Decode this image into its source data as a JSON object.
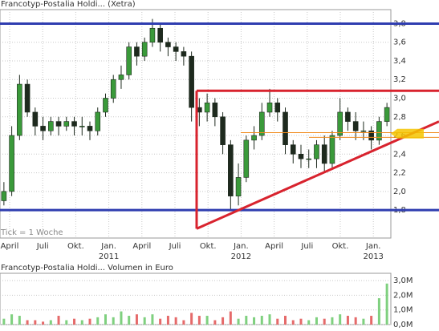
{
  "chart_data": [
    {
      "type": "candlestick",
      "title": "Francotyp-Postalia Holdi... (Xetra)",
      "note": "Tick = 1 Woche",
      "x_labels": [
        "April",
        "Juli",
        "Okt.",
        "Jan.",
        "April",
        "Juli",
        "Okt.",
        "Jan.",
        "April",
        "Juli",
        "Okt.",
        "Jan."
      ],
      "year_labels": [
        "2011",
        "2012",
        "2013"
      ],
      "open": [
        1.9,
        2.0,
        2.6,
        3.15,
        2.85,
        2.7,
        2.65,
        2.75,
        2.7,
        2.75,
        2.7,
        2.7,
        2.65,
        2.85,
        3.0,
        3.2,
        3.25,
        3.55,
        3.45,
        3.6,
        3.75,
        3.6,
        3.55,
        3.5,
        3.45,
        2.9,
        2.85,
        2.95,
        2.8,
        2.5,
        1.95,
        2.15,
        2.55,
        2.6,
        2.85,
        2.95,
        2.85,
        2.5,
        2.4,
        2.35,
        2.35,
        2.5,
        2.3,
        2.6,
        2.85,
        2.75,
        2.65,
        2.65,
        2.55,
        2.75
      ],
      "high": [
        2.1,
        2.7,
        3.25,
        3.2,
        2.9,
        2.8,
        2.8,
        2.8,
        2.8,
        2.8,
        2.8,
        2.75,
        2.9,
        3.05,
        3.25,
        3.35,
        3.6,
        3.6,
        3.65,
        3.85,
        3.8,
        3.65,
        3.6,
        3.55,
        3.5,
        3.0,
        3.05,
        3.0,
        2.85,
        2.55,
        2.3,
        2.6,
        2.7,
        2.95,
        3.1,
        3.0,
        2.9,
        2.55,
        2.5,
        2.45,
        2.55,
        2.6,
        2.65,
        3.0,
        2.9,
        2.85,
        2.75,
        2.7,
        2.8,
        2.95
      ],
      "low": [
        1.85,
        1.95,
        2.55,
        2.8,
        2.6,
        2.55,
        2.6,
        2.6,
        2.65,
        2.6,
        2.6,
        2.55,
        2.6,
        2.8,
        2.95,
        3.1,
        3.2,
        3.35,
        3.4,
        3.55,
        3.5,
        3.45,
        3.4,
        3.35,
        2.75,
        2.7,
        2.75,
        2.7,
        2.4,
        1.8,
        1.85,
        2.1,
        2.45,
        2.55,
        2.8,
        2.75,
        2.4,
        2.3,
        2.25,
        2.25,
        2.25,
        2.2,
        2.25,
        2.55,
        2.65,
        2.55,
        2.55,
        2.45,
        2.5,
        2.7
      ],
      "close": [
        2.0,
        2.6,
        3.15,
        2.85,
        2.7,
        2.65,
        2.75,
        2.7,
        2.75,
        2.7,
        2.7,
        2.65,
        2.85,
        3.0,
        3.2,
        3.25,
        3.55,
        3.45,
        3.6,
        3.75,
        3.6,
        3.55,
        3.5,
        3.45,
        2.9,
        2.85,
        2.95,
        2.8,
        2.5,
        1.95,
        2.15,
        2.55,
        2.6,
        2.85,
        2.95,
        2.85,
        2.5,
        2.4,
        2.35,
        2.35,
        2.5,
        2.3,
        2.6,
        2.85,
        2.75,
        2.65,
        2.65,
        2.55,
        2.75,
        2.9
      ],
      "up_color": "#3a9a3a",
      "down_color": "#1e2a1e",
      "ylim": [
        1.5,
        3.95
      ],
      "yticks": [
        {
          "value": 1.8,
          "label": "1,8"
        },
        {
          "value": 2.0,
          "label": "2,0"
        },
        {
          "value": 2.2,
          "label": "2,2"
        },
        {
          "value": 2.4,
          "label": "2,4"
        },
        {
          "value": 2.6,
          "label": "2,6"
        },
        {
          "value": 2.8,
          "label": "2,8"
        },
        {
          "value": 3.0,
          "label": "3,0"
        },
        {
          "value": 3.2,
          "label": "3,2"
        },
        {
          "value": 3.4,
          "label": "3,4"
        },
        {
          "value": 3.6,
          "label": "3,6"
        },
        {
          "value": 3.8,
          "label": "3,8"
        }
      ],
      "grid": true,
      "levels": [
        {
          "value": 3.8,
          "color": "#2f3db0"
        },
        {
          "value": 1.8,
          "color": "#2f3db0"
        },
        {
          "value": 3.08,
          "color": "#d8232e"
        },
        {
          "value": 2.63,
          "color": "#f08a1c"
        },
        {
          "value": 2.58,
          "color": "#f08a1c"
        }
      ],
      "trend": {
        "values": [
          1.6,
          2.75
        ],
        "color": "#d8232e"
      },
      "price_marker": {
        "value": 2.62,
        "color": "#f5c400"
      }
    },
    {
      "type": "bar",
      "title": "Francotyp-Postalia Holdi... Volumen in Euro",
      "values": [
        0.4,
        0.7,
        0.6,
        0.3,
        0.3,
        0.2,
        0.3,
        0.6,
        0.3,
        0.4,
        0.3,
        0.4,
        0.5,
        0.7,
        0.5,
        0.9,
        0.6,
        0.7,
        0.5,
        0.7,
        0.4,
        0.6,
        0.5,
        0.3,
        0.8,
        0.6,
        0.6,
        0.3,
        0.5,
        0.9,
        0.4,
        0.6,
        0.5,
        0.6,
        0.7,
        0.4,
        0.6,
        0.3,
        0.4,
        0.3,
        0.5,
        0.4,
        0.5,
        0.7,
        0.6,
        0.5,
        0.4,
        0.6,
        1.8,
        2.8
      ],
      "up_color": "#7fd07f",
      "down_color": "#e56a6a",
      "ylim": [
        0,
        3.5
      ],
      "yticks": [
        {
          "value": 0,
          "label": "0,0M"
        },
        {
          "value": 1.0,
          "label": "1,0M"
        },
        {
          "value": 2.0,
          "label": "2,0M"
        },
        {
          "value": 3.0,
          "label": "3,0M"
        }
      ],
      "grid": true
    }
  ]
}
